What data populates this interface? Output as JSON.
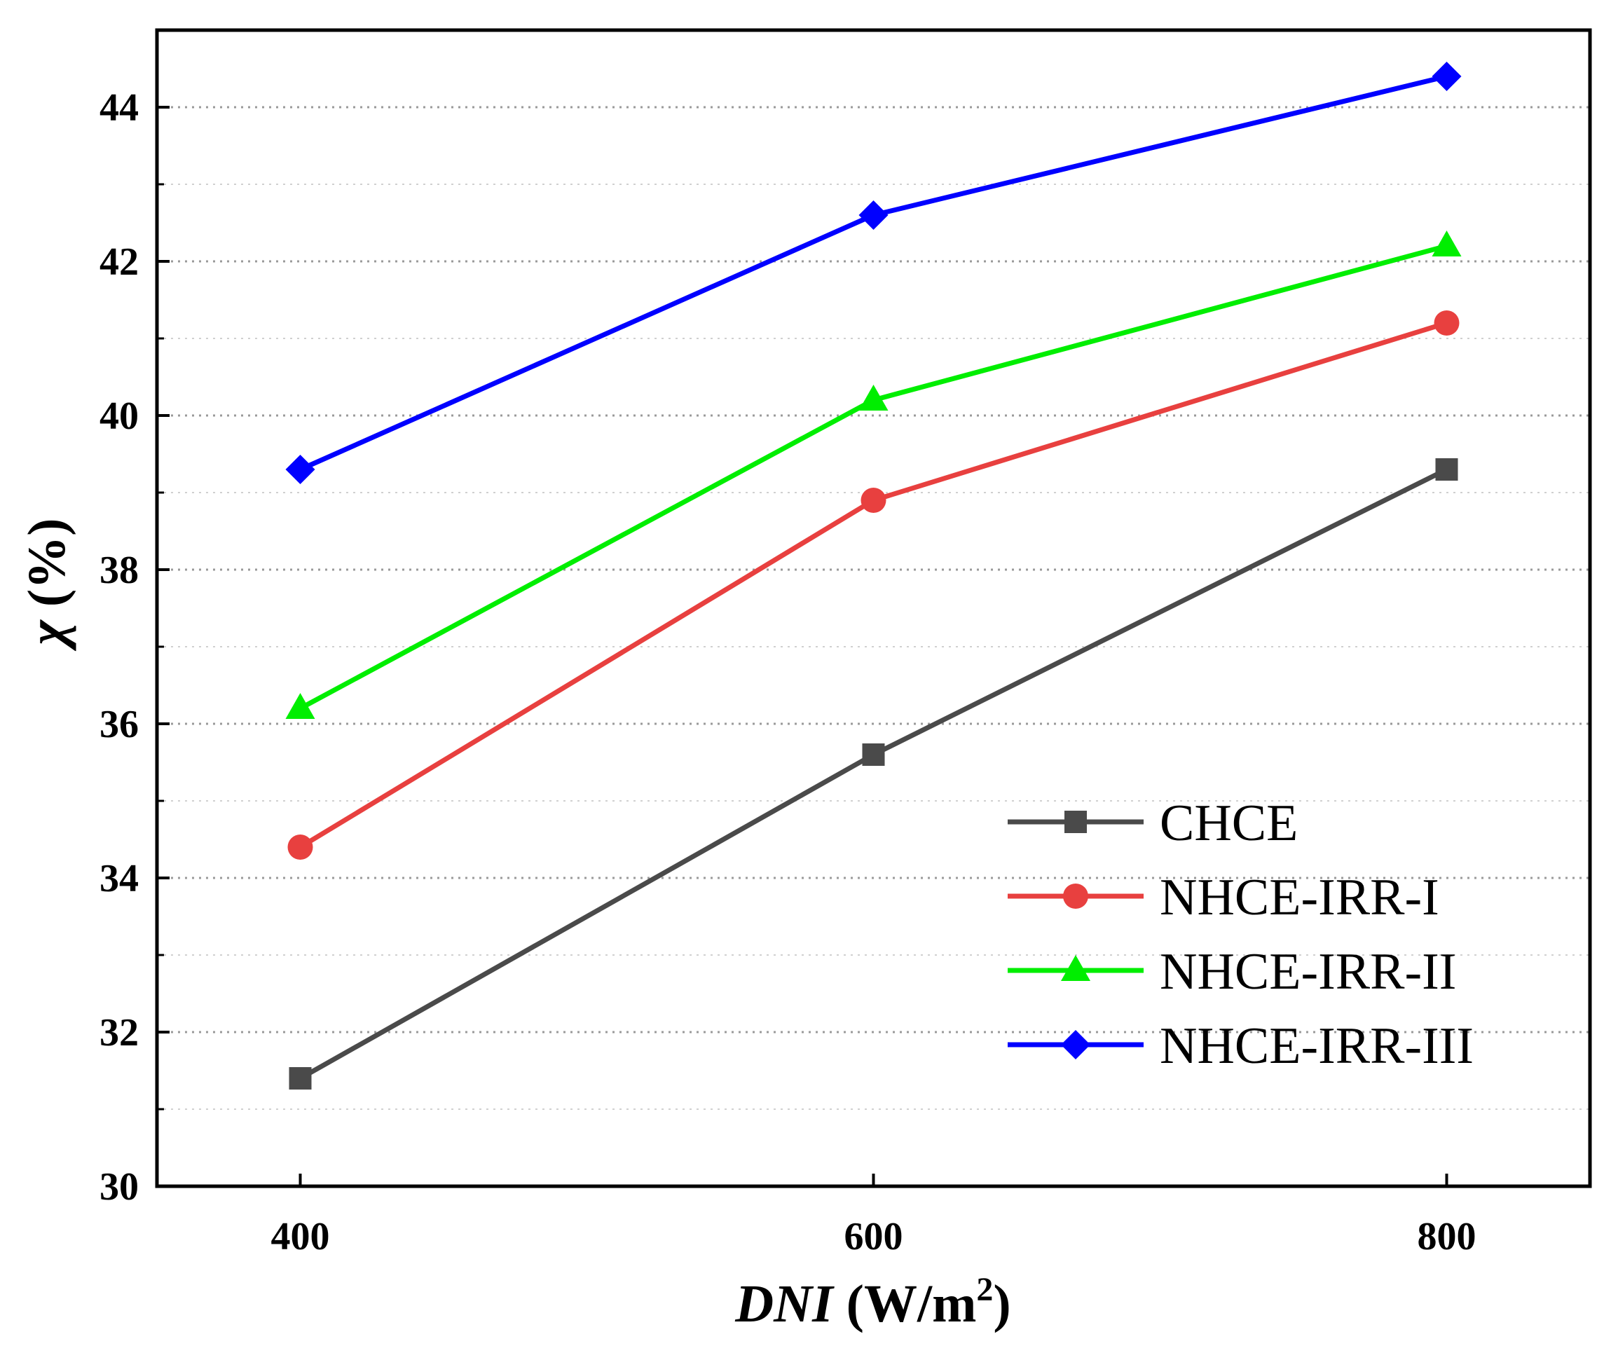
{
  "chart_data": {
    "type": "line",
    "title": "",
    "x": [
      400,
      600,
      800
    ],
    "x_tick_labels": [
      "400",
      "600",
      "800"
    ],
    "xlim": [
      350,
      850
    ],
    "ylim": [
      30,
      45
    ],
    "y_ticks": [
      30,
      32,
      34,
      36,
      38,
      40,
      42,
      44
    ],
    "y_tick_labels": [
      "30",
      "32",
      "34",
      "36",
      "38",
      "40",
      "42",
      "44"
    ],
    "xlabel": {
      "italic": "DNI",
      "rest": " (W/m",
      "sup": "2",
      "close": ")"
    },
    "ylabel": {
      "symbol": "χ",
      "rest": " (%)"
    },
    "grid": "horizontal dotted",
    "legend_position": "bottom-right",
    "series": [
      {
        "name": "CHCE",
        "marker": "square",
        "color": "#4a4a4a",
        "values": [
          31.4,
          35.6,
          39.3
        ]
      },
      {
        "name": "NHCE-IRR-I",
        "marker": "circle",
        "color": "#e8403f",
        "values": [
          34.4,
          38.9,
          41.2
        ]
      },
      {
        "name": "NHCE-IRR-II",
        "marker": "triangle",
        "color": "#00ee00",
        "values": [
          36.2,
          40.2,
          42.2
        ]
      },
      {
        "name": "NHCE-IRR-III",
        "marker": "diamond",
        "color": "#0000ff",
        "values": [
          39.3,
          42.6,
          44.4
        ]
      }
    ]
  }
}
